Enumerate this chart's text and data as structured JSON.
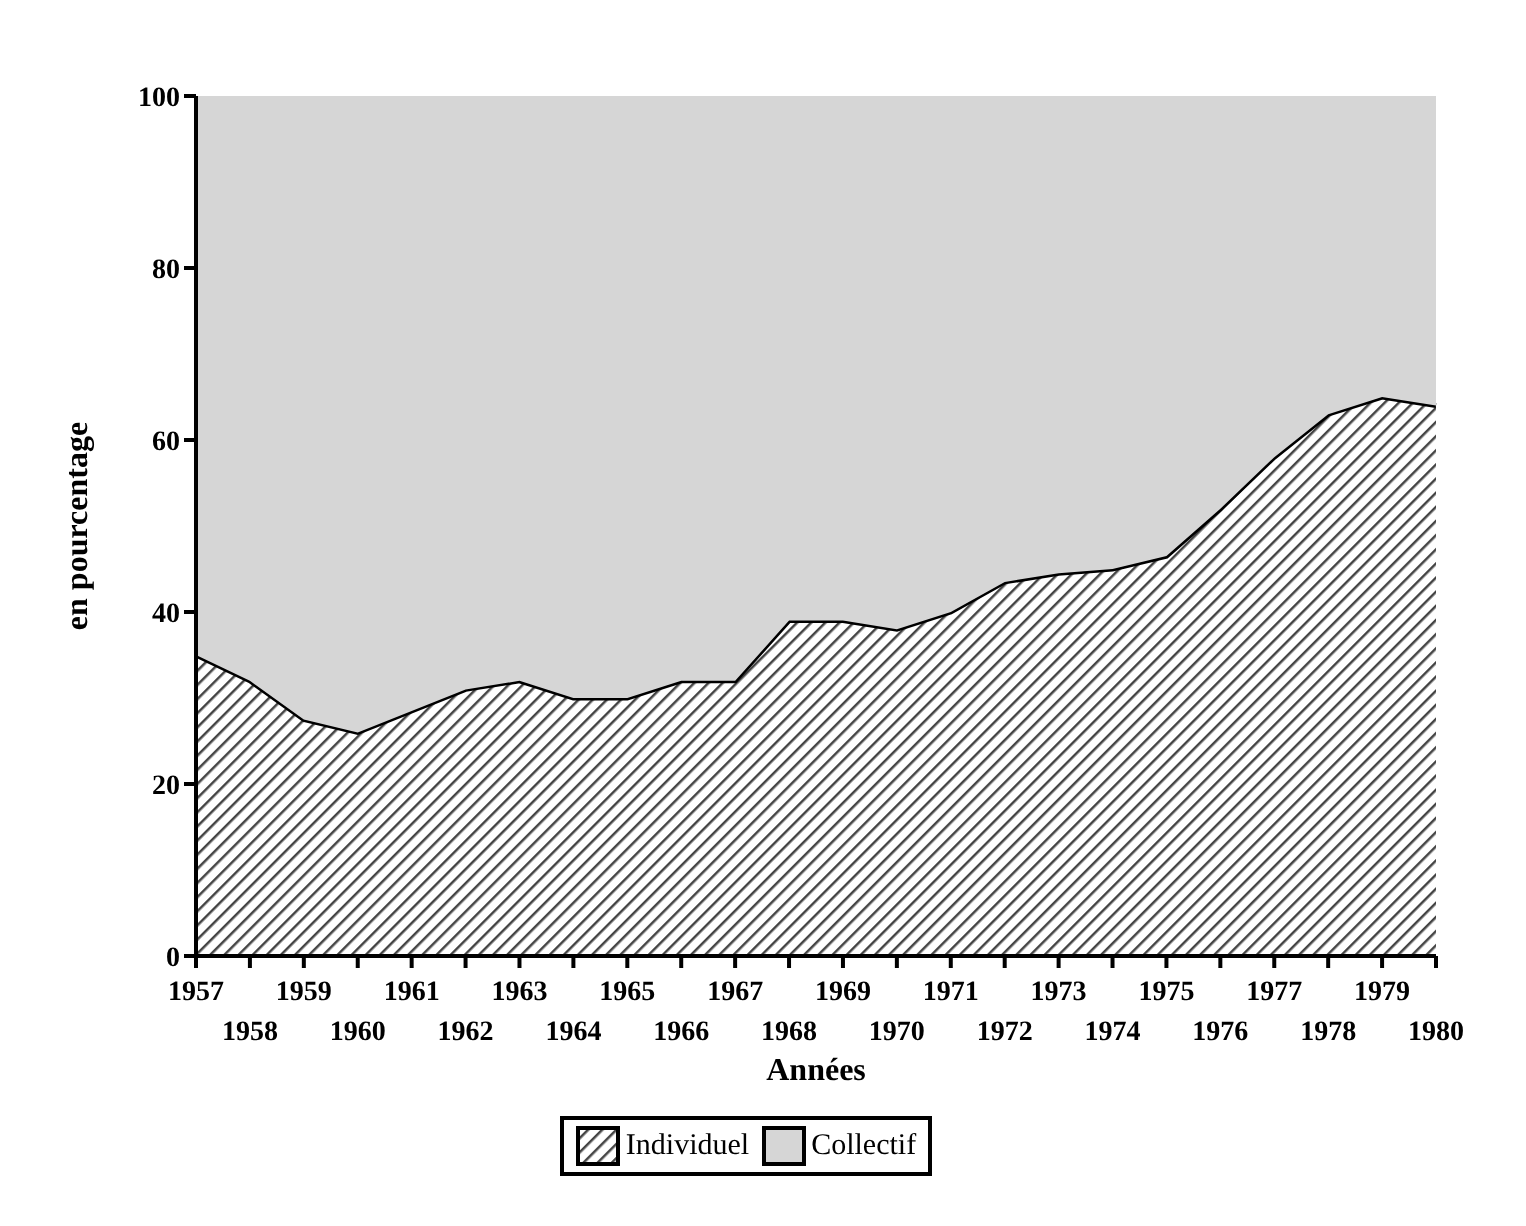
{
  "chart_data": {
    "type": "area",
    "stacked": true,
    "xlabel": "Années",
    "ylabel": "en pourcentage",
    "categories": [
      "1957",
      "1958",
      "1959",
      "1960",
      "1961",
      "1962",
      "1963",
      "1964",
      "1965",
      "1966",
      "1967",
      "1968",
      "1969",
      "1970",
      "1971",
      "1972",
      "1973",
      "1974",
      "1975",
      "1976",
      "1977",
      "1978",
      "1979",
      "1980"
    ],
    "series": [
      {
        "name": "Individuel",
        "color": "#444444",
        "values": [
          35,
          32,
          27.5,
          26,
          28.5,
          31,
          32,
          30,
          30,
          32,
          32,
          39,
          39,
          38,
          40,
          43.5,
          44.5,
          45,
          46.5,
          52,
          58,
          63,
          65,
          64
        ]
      },
      {
        "name": "Collectif",
        "color": "#bbbbbb",
        "values": [
          65,
          68,
          72.5,
          74,
          71.5,
          69,
          68,
          70,
          70,
          68,
          68,
          61,
          61,
          62,
          60,
          56.5,
          55.5,
          55,
          53.5,
          48,
          42,
          37,
          35,
          36
        ]
      }
    ],
    "ylim": [
      0,
      100
    ],
    "yticks": [
      0,
      20,
      40,
      60,
      80,
      100
    ],
    "grid": false,
    "legend": "bottom"
  }
}
